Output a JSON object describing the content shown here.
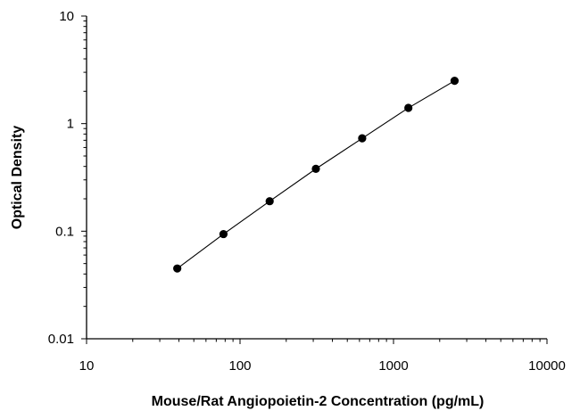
{
  "chart_data": {
    "type": "scatter",
    "title": "",
    "xlabel": "Mouse/Rat Angiopoietin-2 Concentration (pg/mL)",
    "ylabel": "Optical Density",
    "xscale": "log",
    "yscale": "log",
    "xlim": [
      10,
      10000
    ],
    "ylim": [
      0.01,
      10
    ],
    "x_ticks": [
      10,
      100,
      1000,
      10000
    ],
    "x_tick_labels": [
      "10",
      "100",
      "1000",
      "10000"
    ],
    "y_ticks": [
      0.01,
      0.1,
      1,
      10
    ],
    "y_tick_labels": [
      "0.01",
      "0.1",
      "1",
      "10"
    ],
    "grid": false,
    "legend": "none",
    "series": [
      {
        "x": [
          39,
          78,
          156,
          312,
          625,
          1250,
          2500
        ],
        "y": [
          0.045,
          0.094,
          0.19,
          0.38,
          0.73,
          1.4,
          2.5
        ],
        "line": true,
        "marker": "circle",
        "color": "#000000"
      }
    ]
  }
}
